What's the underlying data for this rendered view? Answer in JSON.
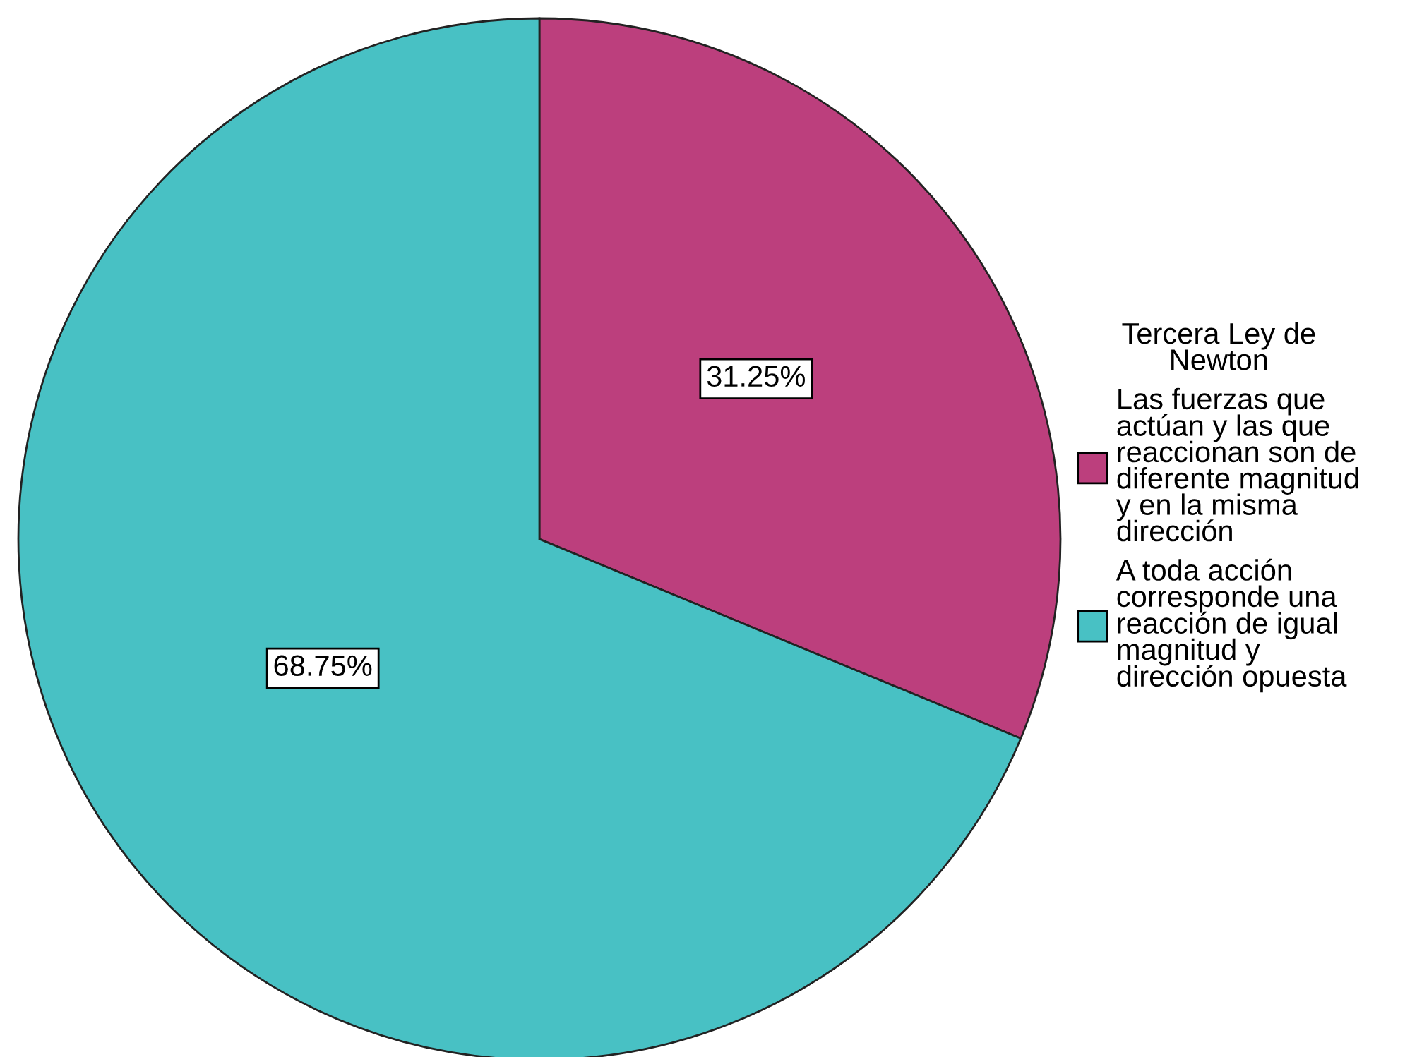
{
  "chart_data": {
    "type": "pie",
    "legend_title": "Tercera Ley de\nNewton",
    "categories": [
      "Las fuerzas que\nactúan y las que\nreaccionan son de\ndiferente magnitud\ny en la misma\ndirección",
      "A toda acción\ncorresponde una\nreacción de igual\nmagnitud y\ndirección opuesta"
    ],
    "values": [
      31.25,
      68.75
    ],
    "colors": [
      "#bc3f7d",
      "#48c1c4"
    ],
    "value_labels": [
      "31.25%",
      "68.75%"
    ],
    "legend": "right"
  }
}
